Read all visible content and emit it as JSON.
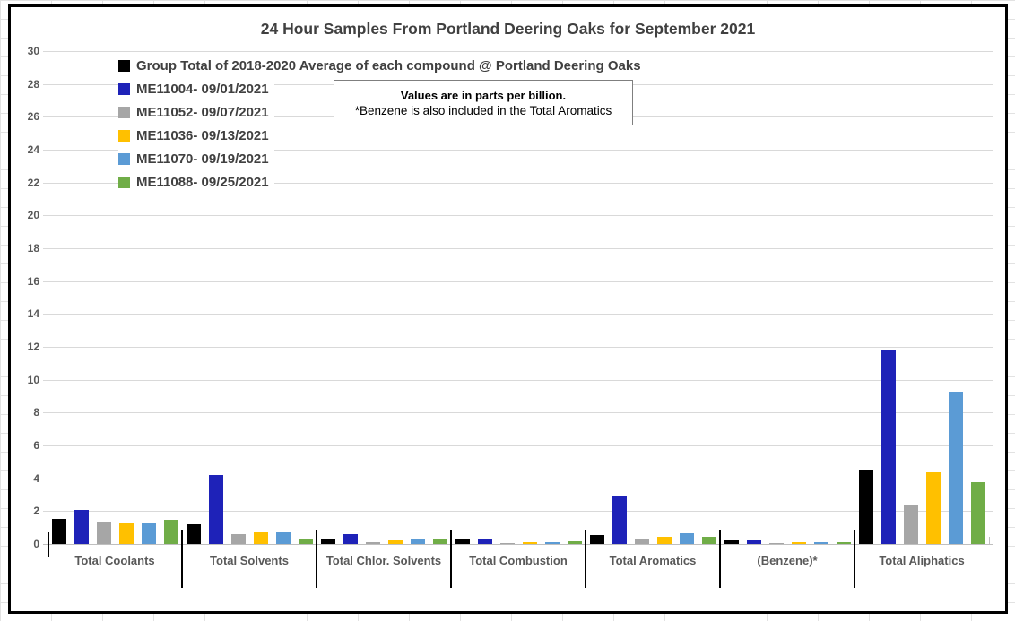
{
  "chart_data": {
    "type": "bar",
    "title": "24 Hour Samples From Portland Deering Oaks for September 2021",
    "units_note": {
      "line1": "Values are in parts per billion.",
      "line2": "*Benzene is also included in the Total Aromatics"
    },
    "categories": [
      "Total Coolants",
      "Total Solvents",
      "Total Chlor. Solvents",
      "Total Combustion",
      "Total Aromatics",
      "(Benzene)*",
      "Total Aliphatics"
    ],
    "series": [
      {
        "name": "Group Total of 2018-2020 Average of each compound @ Portland Deering Oaks",
        "color": "#000000",
        "values": [
          1.55,
          1.2,
          0.35,
          0.25,
          0.55,
          0.2,
          4.5
        ]
      },
      {
        "name": "ME11004- 09/01/2021",
        "color": "#1e22b8",
        "values": [
          2.1,
          4.2,
          0.6,
          0.25,
          2.9,
          0.2,
          11.8
        ]
      },
      {
        "name": "ME11052- 09/07/2021",
        "color": "#a6a6a6",
        "values": [
          1.3,
          0.6,
          0.12,
          0.08,
          0.35,
          0.08,
          2.4
        ]
      },
      {
        "name": "ME11036- 09/13/2021",
        "color": "#ffc000",
        "values": [
          1.25,
          0.7,
          0.2,
          0.1,
          0.45,
          0.12,
          4.35
        ]
      },
      {
        "name": "ME11070- 09/19/2021",
        "color": "#5b9bd5",
        "values": [
          1.25,
          0.7,
          0.3,
          0.1,
          0.65,
          0.1,
          9.2
        ]
      },
      {
        "name": "ME11088- 09/25/2021",
        "color": "#70ad47",
        "values": [
          1.45,
          0.3,
          0.25,
          0.15,
          0.45,
          0.1,
          3.75
        ]
      }
    ],
    "ylim": [
      0,
      30
    ],
    "yticks": [
      0,
      2,
      4,
      6,
      8,
      10,
      12,
      14,
      16,
      18,
      20,
      22,
      24,
      26,
      28,
      30
    ],
    "grid": true,
    "legend_position": "inside-top-left",
    "axis_colors": {
      "gridline": "#d9d9d9",
      "axis_line": "#bfbfbf",
      "tick_label": "#595959",
      "title": "#404040"
    }
  }
}
